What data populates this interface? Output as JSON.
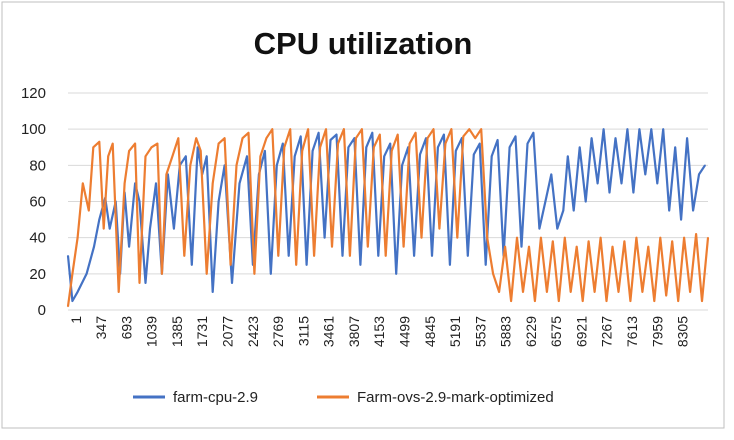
{
  "chart_data": {
    "type": "line",
    "title": "CPU utilization",
    "xlabel": "",
    "ylabel": "",
    "ylim": [
      0,
      120
    ],
    "yticks": [
      0,
      20,
      40,
      60,
      80,
      100,
      120
    ],
    "xlim": [
      1,
      8580
    ],
    "x_tick_labels": [
      "1",
      "347",
      "693",
      "1039",
      "1385",
      "1731",
      "2077",
      "2423",
      "2769",
      "3115",
      "3461",
      "3807",
      "4153",
      "4499",
      "4845",
      "5191",
      "5537",
      "5883",
      "6229",
      "6575",
      "6921",
      "7267",
      "7613",
      "7959",
      "8305"
    ],
    "grid": "horizontal",
    "legend_position": "bottom",
    "series": [
      {
        "name": "farm-cpu-2.9",
        "color": "#4472C4",
        "x": [
          1,
          60,
          130,
          250,
          350,
          420,
          500,
          560,
          640,
          700,
          760,
          820,
          900,
          960,
          1040,
          1100,
          1180,
          1260,
          1340,
          1420,
          1500,
          1580,
          1660,
          1740,
          1800,
          1860,
          1940,
          2020,
          2100,
          2200,
          2300,
          2400,
          2480,
          2560,
          2640,
          2720,
          2800,
          2880,
          2960,
          3040,
          3120,
          3200,
          3280,
          3360,
          3440,
          3520,
          3600,
          3680,
          3760,
          3840,
          3920,
          4000,
          4080,
          4160,
          4240,
          4320,
          4400,
          4480,
          4560,
          4640,
          4720,
          4800,
          4880,
          4960,
          5040,
          5120,
          5200,
          5280,
          5360,
          5440,
          5520,
          5600,
          5680,
          5760,
          5840,
          5920,
          6000,
          6080,
          6160,
          6240,
          6320,
          6400,
          6480,
          6560,
          6640,
          6700,
          6780,
          6860,
          6940,
          7020,
          7100,
          7180,
          7260,
          7340,
          7420,
          7500,
          7580,
          7660,
          7740,
          7820,
          7900,
          7980,
          8060,
          8140,
          8220,
          8300,
          8380,
          8460,
          8540
        ],
        "y": [
          30,
          5,
          10,
          20,
          35,
          50,
          62,
          45,
          60,
          20,
          65,
          35,
          70,
          60,
          15,
          45,
          70,
          20,
          75,
          45,
          80,
          85,
          25,
          90,
          75,
          85,
          10,
          60,
          80,
          15,
          70,
          85,
          25,
          75,
          88,
          20,
          80,
          92,
          30,
          85,
          96,
          25,
          88,
          98,
          40,
          94,
          97,
          30,
          90,
          95,
          25,
          90,
          98,
          30,
          85,
          92,
          20,
          80,
          90,
          30,
          86,
          95,
          30,
          90,
          97,
          25,
          88,
          95,
          30,
          86,
          92,
          25,
          85,
          94,
          30,
          90,
          96,
          35,
          92,
          98,
          45,
          60,
          75,
          45,
          55,
          85,
          55,
          90,
          60,
          95,
          70,
          100,
          65,
          95,
          70,
          100,
          65,
          100,
          75,
          100,
          70,
          100,
          55,
          90,
          50,
          95,
          55,
          75,
          80
        ]
      },
      {
        "name": "Farm-ovs-2.9-mark-optimized",
        "color": "#ED7D31",
        "x": [
          1,
          60,
          130,
          200,
          280,
          340,
          420,
          480,
          540,
          600,
          680,
          760,
          820,
          900,
          960,
          1040,
          1120,
          1200,
          1260,
          1320,
          1400,
          1480,
          1560,
          1640,
          1720,
          1780,
          1860,
          1940,
          2020,
          2100,
          2180,
          2260,
          2340,
          2420,
          2500,
          2580,
          2660,
          2740,
          2820,
          2900,
          2980,
          3060,
          3140,
          3220,
          3300,
          3380,
          3460,
          3540,
          3620,
          3700,
          3780,
          3860,
          3940,
          4020,
          4100,
          4180,
          4260,
          4340,
          4420,
          4500,
          4580,
          4660,
          4740,
          4820,
          4900,
          4980,
          5060,
          5140,
          5220,
          5300,
          5380,
          5460,
          5540,
          5620,
          5700,
          5780,
          5860,
          5940,
          6020,
          6100,
          6180,
          6260,
          6340,
          6420,
          6500,
          6580,
          6660,
          6740,
          6820,
          6900,
          6980,
          7060,
          7140,
          7220,
          7300,
          7380,
          7460,
          7540,
          7620,
          7700,
          7780,
          7860,
          7940,
          8020,
          8100,
          8180,
          8260,
          8340,
          8420,
          8500,
          8580
        ],
        "y": [
          2,
          20,
          40,
          70,
          55,
          90,
          93,
          45,
          85,
          92,
          10,
          70,
          88,
          92,
          15,
          85,
          90,
          92,
          20,
          75,
          85,
          95,
          30,
          80,
          95,
          88,
          20,
          70,
          92,
          95,
          25,
          80,
          95,
          98,
          20,
          85,
          95,
          100,
          30,
          90,
          100,
          25,
          88,
          100,
          30,
          90,
          100,
          35,
          92,
          100,
          30,
          95,
          100,
          35,
          90,
          97,
          30,
          88,
          97,
          35,
          92,
          98,
          40,
          95,
          100,
          45,
          92,
          100,
          40,
          96,
          100,
          95,
          100,
          40,
          20,
          10,
          35,
          5,
          40,
          10,
          35,
          5,
          40,
          10,
          38,
          5,
          40,
          10,
          35,
          5,
          38,
          10,
          40,
          5,
          35,
          10,
          38,
          5,
          40,
          10,
          35,
          5,
          40,
          8,
          38,
          5,
          40,
          10,
          42,
          5,
          40
        ]
      }
    ]
  }
}
